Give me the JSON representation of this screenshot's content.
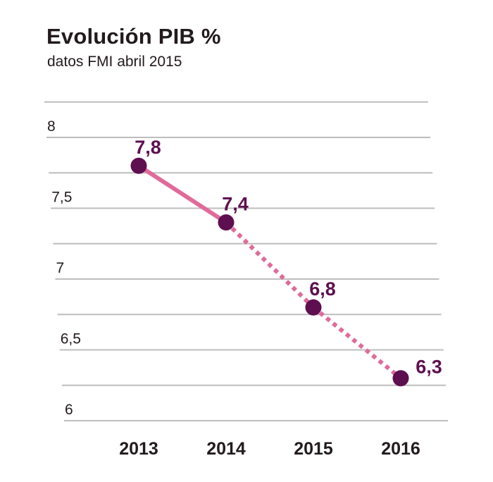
{
  "title": "Evolución PIB %",
  "subtitle": "datos FMI abril 2015",
  "colors": {
    "line": "#e06a9a",
    "marker": "#5e0f50",
    "label": "#5e0f50",
    "grid": "#bdbdbd",
    "text": "#221a1c"
  },
  "chart_data": {
    "type": "line",
    "title": "Evolución PIB %",
    "subtitle": "datos FMI abril 2015",
    "categories": [
      "2013",
      "2014",
      "2015",
      "2016"
    ],
    "values": [
      7.8,
      7.4,
      6.8,
      6.3
    ],
    "data_labels": [
      "7,8",
      "7,4",
      "6,8",
      "6,3"
    ],
    "line_style": [
      "solid",
      "dotted",
      "dotted"
    ],
    "y_ticks": [
      {
        "value": 8,
        "label": "8"
      },
      {
        "value": 7.5,
        "label": "7,5"
      },
      {
        "value": 7,
        "label": "7"
      },
      {
        "value": 6.5,
        "label": "6,5"
      },
      {
        "value": 6,
        "label": "6"
      }
    ],
    "ylim": [
      6,
      8
    ],
    "grid": true,
    "legend": "none"
  }
}
